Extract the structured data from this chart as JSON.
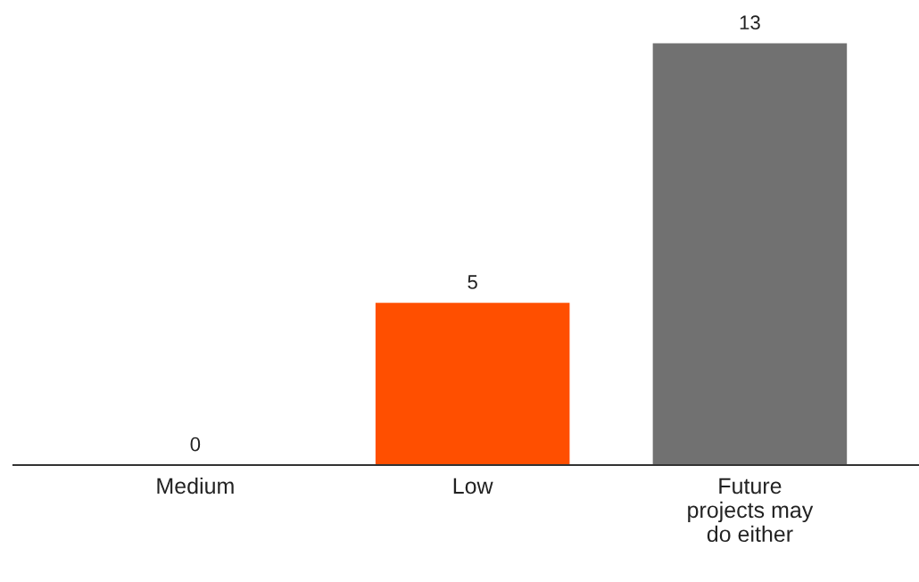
{
  "chart_data": {
    "type": "bar",
    "categories": [
      "Medium",
      "Low",
      "Future\nprojects may\ndo either"
    ],
    "values": [
      0,
      5,
      13
    ],
    "colors": [
      "#ff4f00",
      "#ff4f00",
      "#717171"
    ],
    "data_labels": true,
    "grid": false,
    "legend": false
  }
}
